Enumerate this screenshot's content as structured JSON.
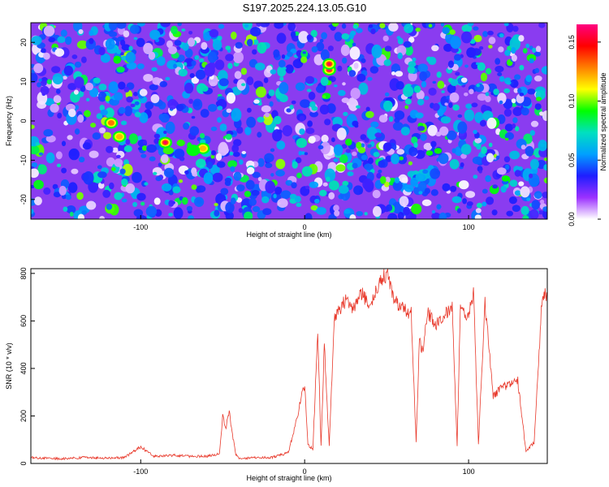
{
  "title": "S197.2025.224.13.05.G10",
  "chart_data": [
    {
      "type": "heatmap",
      "xlabel": "Height of straight line (km)",
      "ylabel": "Frequency (Hz)",
      "xlim": [
        -167,
        148
      ],
      "ylim": [
        -25,
        25
      ],
      "x_ticks": [
        -100,
        0,
        100
      ],
      "y_ticks": [
        -20,
        -10,
        0,
        10,
        20
      ],
      "colorbar": {
        "label": "Normalized spectral amplitude",
        "range": [
          0,
          0.165
        ],
        "ticks": [
          0.0,
          0.05,
          0.1,
          0.15
        ],
        "colors": [
          "#ffffff",
          "#9b30ff",
          "#1e1eff",
          "#00a0ff",
          "#00e0c0",
          "#00ff00",
          "#ffff00",
          "#ff8000",
          "#ff0000",
          "#ff0080"
        ]
      },
      "hotspots": [
        {
          "x": 15,
          "y": 13,
          "value": 0.165
        },
        {
          "x": 15,
          "y": 14.5,
          "value": 0.16
        },
        {
          "x": -85,
          "y": -5.5,
          "value": 0.16
        },
        {
          "x": -118,
          "y": -0.5,
          "value": 0.13
        },
        {
          "x": -113,
          "y": -4,
          "value": 0.12
        },
        {
          "x": -62,
          "y": -7,
          "value": 0.12
        },
        {
          "x": -68,
          "y": -7.5,
          "value": 0.09
        }
      ]
    },
    {
      "type": "line",
      "xlabel": "Height of straight line (km)",
      "ylabel": "SNR (10 * v/v)",
      "xlim": [
        -167,
        148
      ],
      "ylim": [
        0,
        820
      ],
      "x_ticks": [
        -100,
        0,
        100
      ],
      "y_ticks": [
        0,
        200,
        400,
        600,
        800
      ],
      "line_color": "#e8382a",
      "x": [
        -167,
        -150,
        -135,
        -120,
        -110,
        -100,
        -92,
        -80,
        -70,
        -60,
        -52,
        -50,
        -48,
        -46,
        -44,
        -42,
        -40,
        -30,
        -20,
        -10,
        -5,
        -2,
        0,
        2,
        5,
        8,
        10,
        12,
        15,
        18,
        20,
        25,
        30,
        35,
        40,
        45,
        50,
        55,
        60,
        65,
        68,
        70,
        72,
        75,
        80,
        85,
        90,
        93,
        95,
        100,
        103,
        106,
        110,
        115,
        120,
        125,
        130,
        135,
        140,
        145,
        148
      ],
      "y": [
        25,
        20,
        25,
        22,
        25,
        70,
        30,
        35,
        30,
        30,
        40,
        200,
        150,
        220,
        120,
        40,
        20,
        25,
        25,
        45,
        180,
        280,
        330,
        80,
        60,
        550,
        70,
        500,
        70,
        600,
        630,
        690,
        650,
        720,
        660,
        760,
        800,
        690,
        650,
        630,
        90,
        520,
        470,
        640,
        580,
        620,
        660,
        80,
        640,
        620,
        720,
        80,
        680,
        280,
        320,
        330,
        350,
        50,
        90,
        720,
        700
      ]
    }
  ]
}
